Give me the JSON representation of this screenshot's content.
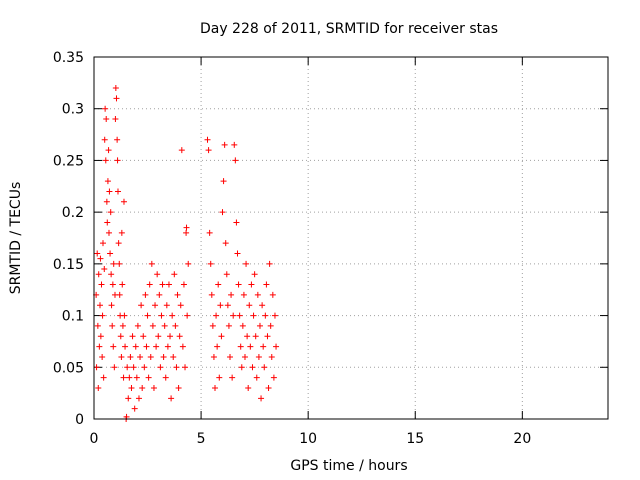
{
  "chart_data": {
    "type": "scatter",
    "title": "Day 228 of 2011, SRMTID for receiver stas",
    "xlabel": "GPS time / hours",
    "ylabel": "SRMTID / TECUs",
    "xlim": [
      0,
      24
    ],
    "ylim": [
      0,
      0.35
    ],
    "xticks": [
      0,
      5,
      10,
      15,
      20
    ],
    "yticks": [
      0,
      0.05,
      0.1,
      0.15,
      0.2,
      0.25,
      0.3,
      0.35
    ],
    "xtick_labels": [
      "0",
      "5",
      "10",
      "15",
      "20"
    ],
    "ytick_labels": [
      "0",
      "0.05",
      "0.1",
      "0.15",
      "0.2",
      "0.25",
      "0.3",
      "0.35"
    ],
    "grid": true,
    "marker": "+",
    "marker_color": "#ff0000",
    "series": [
      {
        "name": "SRMTID",
        "points": [
          [
            0.1,
            0.12
          ],
          [
            0.12,
            0.05
          ],
          [
            0.15,
            0.16
          ],
          [
            0.18,
            0.09
          ],
          [
            0.2,
            0.03
          ],
          [
            0.22,
            0.14
          ],
          [
            0.25,
            0.07
          ],
          [
            0.28,
            0.11
          ],
          [
            0.3,
            0.155
          ],
          [
            0.32,
            0.08
          ],
          [
            0.35,
            0.13
          ],
          [
            0.38,
            0.06
          ],
          [
            0.4,
            0.1
          ],
          [
            0.42,
            0.17
          ],
          [
            0.45,
            0.04
          ],
          [
            0.48,
            0.145
          ],
          [
            0.5,
            0.27
          ],
          [
            0.52,
            0.3
          ],
          [
            0.55,
            0.25
          ],
          [
            0.57,
            0.29
          ],
          [
            0.6,
            0.21
          ],
          [
            0.62,
            0.19
          ],
          [
            0.65,
            0.23
          ],
          [
            0.68,
            0.26
          ],
          [
            0.7,
            0.18
          ],
          [
            0.72,
            0.22
          ],
          [
            0.75,
            0.16
          ],
          [
            0.78,
            0.2
          ],
          [
            0.8,
            0.14
          ],
          [
            0.82,
            0.11
          ],
          [
            0.85,
            0.09
          ],
          [
            0.88,
            0.13
          ],
          [
            0.9,
            0.07
          ],
          [
            0.92,
            0.15
          ],
          [
            0.95,
            0.05
          ],
          [
            0.98,
            0.12
          ],
          [
            1.0,
            0.29
          ],
          [
            1.02,
            0.32
          ],
          [
            1.05,
            0.31
          ],
          [
            1.08,
            0.27
          ],
          [
            1.1,
            0.25
          ],
          [
            1.12,
            0.22
          ],
          [
            1.15,
            0.17
          ],
          [
            1.18,
            0.15
          ],
          [
            1.2,
            0.12
          ],
          [
            1.22,
            0.1
          ],
          [
            1.25,
            0.08
          ],
          [
            1.28,
            0.06
          ],
          [
            1.3,
            0.18
          ],
          [
            1.32,
            0.13
          ],
          [
            1.35,
            0.09
          ],
          [
            1.38,
            0.04
          ],
          [
            1.4,
            0.21
          ],
          [
            1.42,
            0.1
          ],
          [
            1.45,
            0.07
          ],
          [
            1.5,
            0.0
          ],
          [
            1.52,
            0.002
          ],
          [
            1.55,
            0.05
          ],
          [
            1.6,
            0.02
          ],
          [
            1.65,
            0.04
          ],
          [
            1.7,
            0.06
          ],
          [
            1.75,
            0.03
          ],
          [
            1.8,
            0.08
          ],
          [
            1.85,
            0.05
          ],
          [
            1.9,
            0.01
          ],
          [
            1.95,
            0.07
          ],
          [
            2.0,
            0.04
          ],
          [
            2.05,
            0.09
          ],
          [
            2.1,
            0.02
          ],
          [
            2.15,
            0.06
          ],
          [
            2.2,
            0.11
          ],
          [
            2.25,
            0.03
          ],
          [
            2.3,
            0.08
          ],
          [
            2.35,
            0.05
          ],
          [
            2.4,
            0.12
          ],
          [
            2.45,
            0.07
          ],
          [
            2.5,
            0.1
          ],
          [
            2.55,
            0.04
          ],
          [
            2.6,
            0.13
          ],
          [
            2.65,
            0.06
          ],
          [
            2.7,
            0.15
          ],
          [
            2.75,
            0.09
          ],
          [
            2.8,
            0.03
          ],
          [
            2.85,
            0.11
          ],
          [
            2.9,
            0.07
          ],
          [
            2.95,
            0.14
          ],
          [
            3.0,
            0.08
          ],
          [
            3.05,
            0.12
          ],
          [
            3.1,
            0.05
          ],
          [
            3.15,
            0.1
          ],
          [
            3.2,
            0.13
          ],
          [
            3.25,
            0.06
          ],
          [
            3.3,
            0.09
          ],
          [
            3.35,
            0.04
          ],
          [
            3.4,
            0.11
          ],
          [
            3.45,
            0.07
          ],
          [
            3.5,
            0.13
          ],
          [
            3.55,
            0.08
          ],
          [
            3.6,
            0.02
          ],
          [
            3.65,
            0.1
          ],
          [
            3.7,
            0.06
          ],
          [
            3.75,
            0.14
          ],
          [
            3.8,
            0.09
          ],
          [
            3.85,
            0.05
          ],
          [
            3.9,
            0.12
          ],
          [
            3.95,
            0.03
          ],
          [
            4.0,
            0.08
          ],
          [
            4.05,
            0.11
          ],
          [
            4.1,
            0.26
          ],
          [
            4.15,
            0.07
          ],
          [
            4.2,
            0.13
          ],
          [
            4.25,
            0.05
          ],
          [
            4.3,
            0.18
          ],
          [
            4.32,
            0.185
          ],
          [
            4.35,
            0.1
          ],
          [
            4.4,
            0.15
          ],
          [
            5.3,
            0.27
          ],
          [
            5.35,
            0.26
          ],
          [
            5.4,
            0.18
          ],
          [
            5.45,
            0.15
          ],
          [
            5.5,
            0.12
          ],
          [
            5.55,
            0.09
          ],
          [
            5.6,
            0.06
          ],
          [
            5.65,
            0.03
          ],
          [
            5.7,
            0.1
          ],
          [
            5.75,
            0.07
          ],
          [
            5.8,
            0.13
          ],
          [
            5.85,
            0.04
          ],
          [
            5.9,
            0.11
          ],
          [
            5.95,
            0.08
          ],
          [
            6.0,
            0.2
          ],
          [
            6.05,
            0.23
          ],
          [
            6.1,
            0.265
          ],
          [
            6.15,
            0.17
          ],
          [
            6.2,
            0.14
          ],
          [
            6.25,
            0.11
          ],
          [
            6.3,
            0.09
          ],
          [
            6.35,
            0.06
          ],
          [
            6.4,
            0.12
          ],
          [
            6.45,
            0.04
          ],
          [
            6.5,
            0.1
          ],
          [
            6.55,
            0.265
          ],
          [
            6.6,
            0.25
          ],
          [
            6.65,
            0.19
          ],
          [
            6.7,
            0.16
          ],
          [
            6.75,
            0.13
          ],
          [
            6.8,
            0.1
          ],
          [
            6.85,
            0.07
          ],
          [
            6.9,
            0.05
          ],
          [
            6.95,
            0.09
          ],
          [
            7.0,
            0.12
          ],
          [
            7.05,
            0.06
          ],
          [
            7.1,
            0.15
          ],
          [
            7.15,
            0.08
          ],
          [
            7.2,
            0.03
          ],
          [
            7.25,
            0.11
          ],
          [
            7.3,
            0.07
          ],
          [
            7.35,
            0.13
          ],
          [
            7.4,
            0.05
          ],
          [
            7.45,
            0.1
          ],
          [
            7.5,
            0.14
          ],
          [
            7.55,
            0.08
          ],
          [
            7.6,
            0.04
          ],
          [
            7.65,
            0.12
          ],
          [
            7.7,
            0.06
          ],
          [
            7.75,
            0.09
          ],
          [
            7.8,
            0.02
          ],
          [
            7.85,
            0.11
          ],
          [
            7.9,
            0.07
          ],
          [
            7.95,
            0.05
          ],
          [
            8.0,
            0.1
          ],
          [
            8.05,
            0.13
          ],
          [
            8.1,
            0.08
          ],
          [
            8.15,
            0.03
          ],
          [
            8.2,
            0.15
          ],
          [
            8.25,
            0.09
          ],
          [
            8.3,
            0.06
          ],
          [
            8.35,
            0.12
          ],
          [
            8.4,
            0.04
          ],
          [
            8.45,
            0.1
          ],
          [
            8.5,
            0.07
          ]
        ]
      }
    ]
  }
}
